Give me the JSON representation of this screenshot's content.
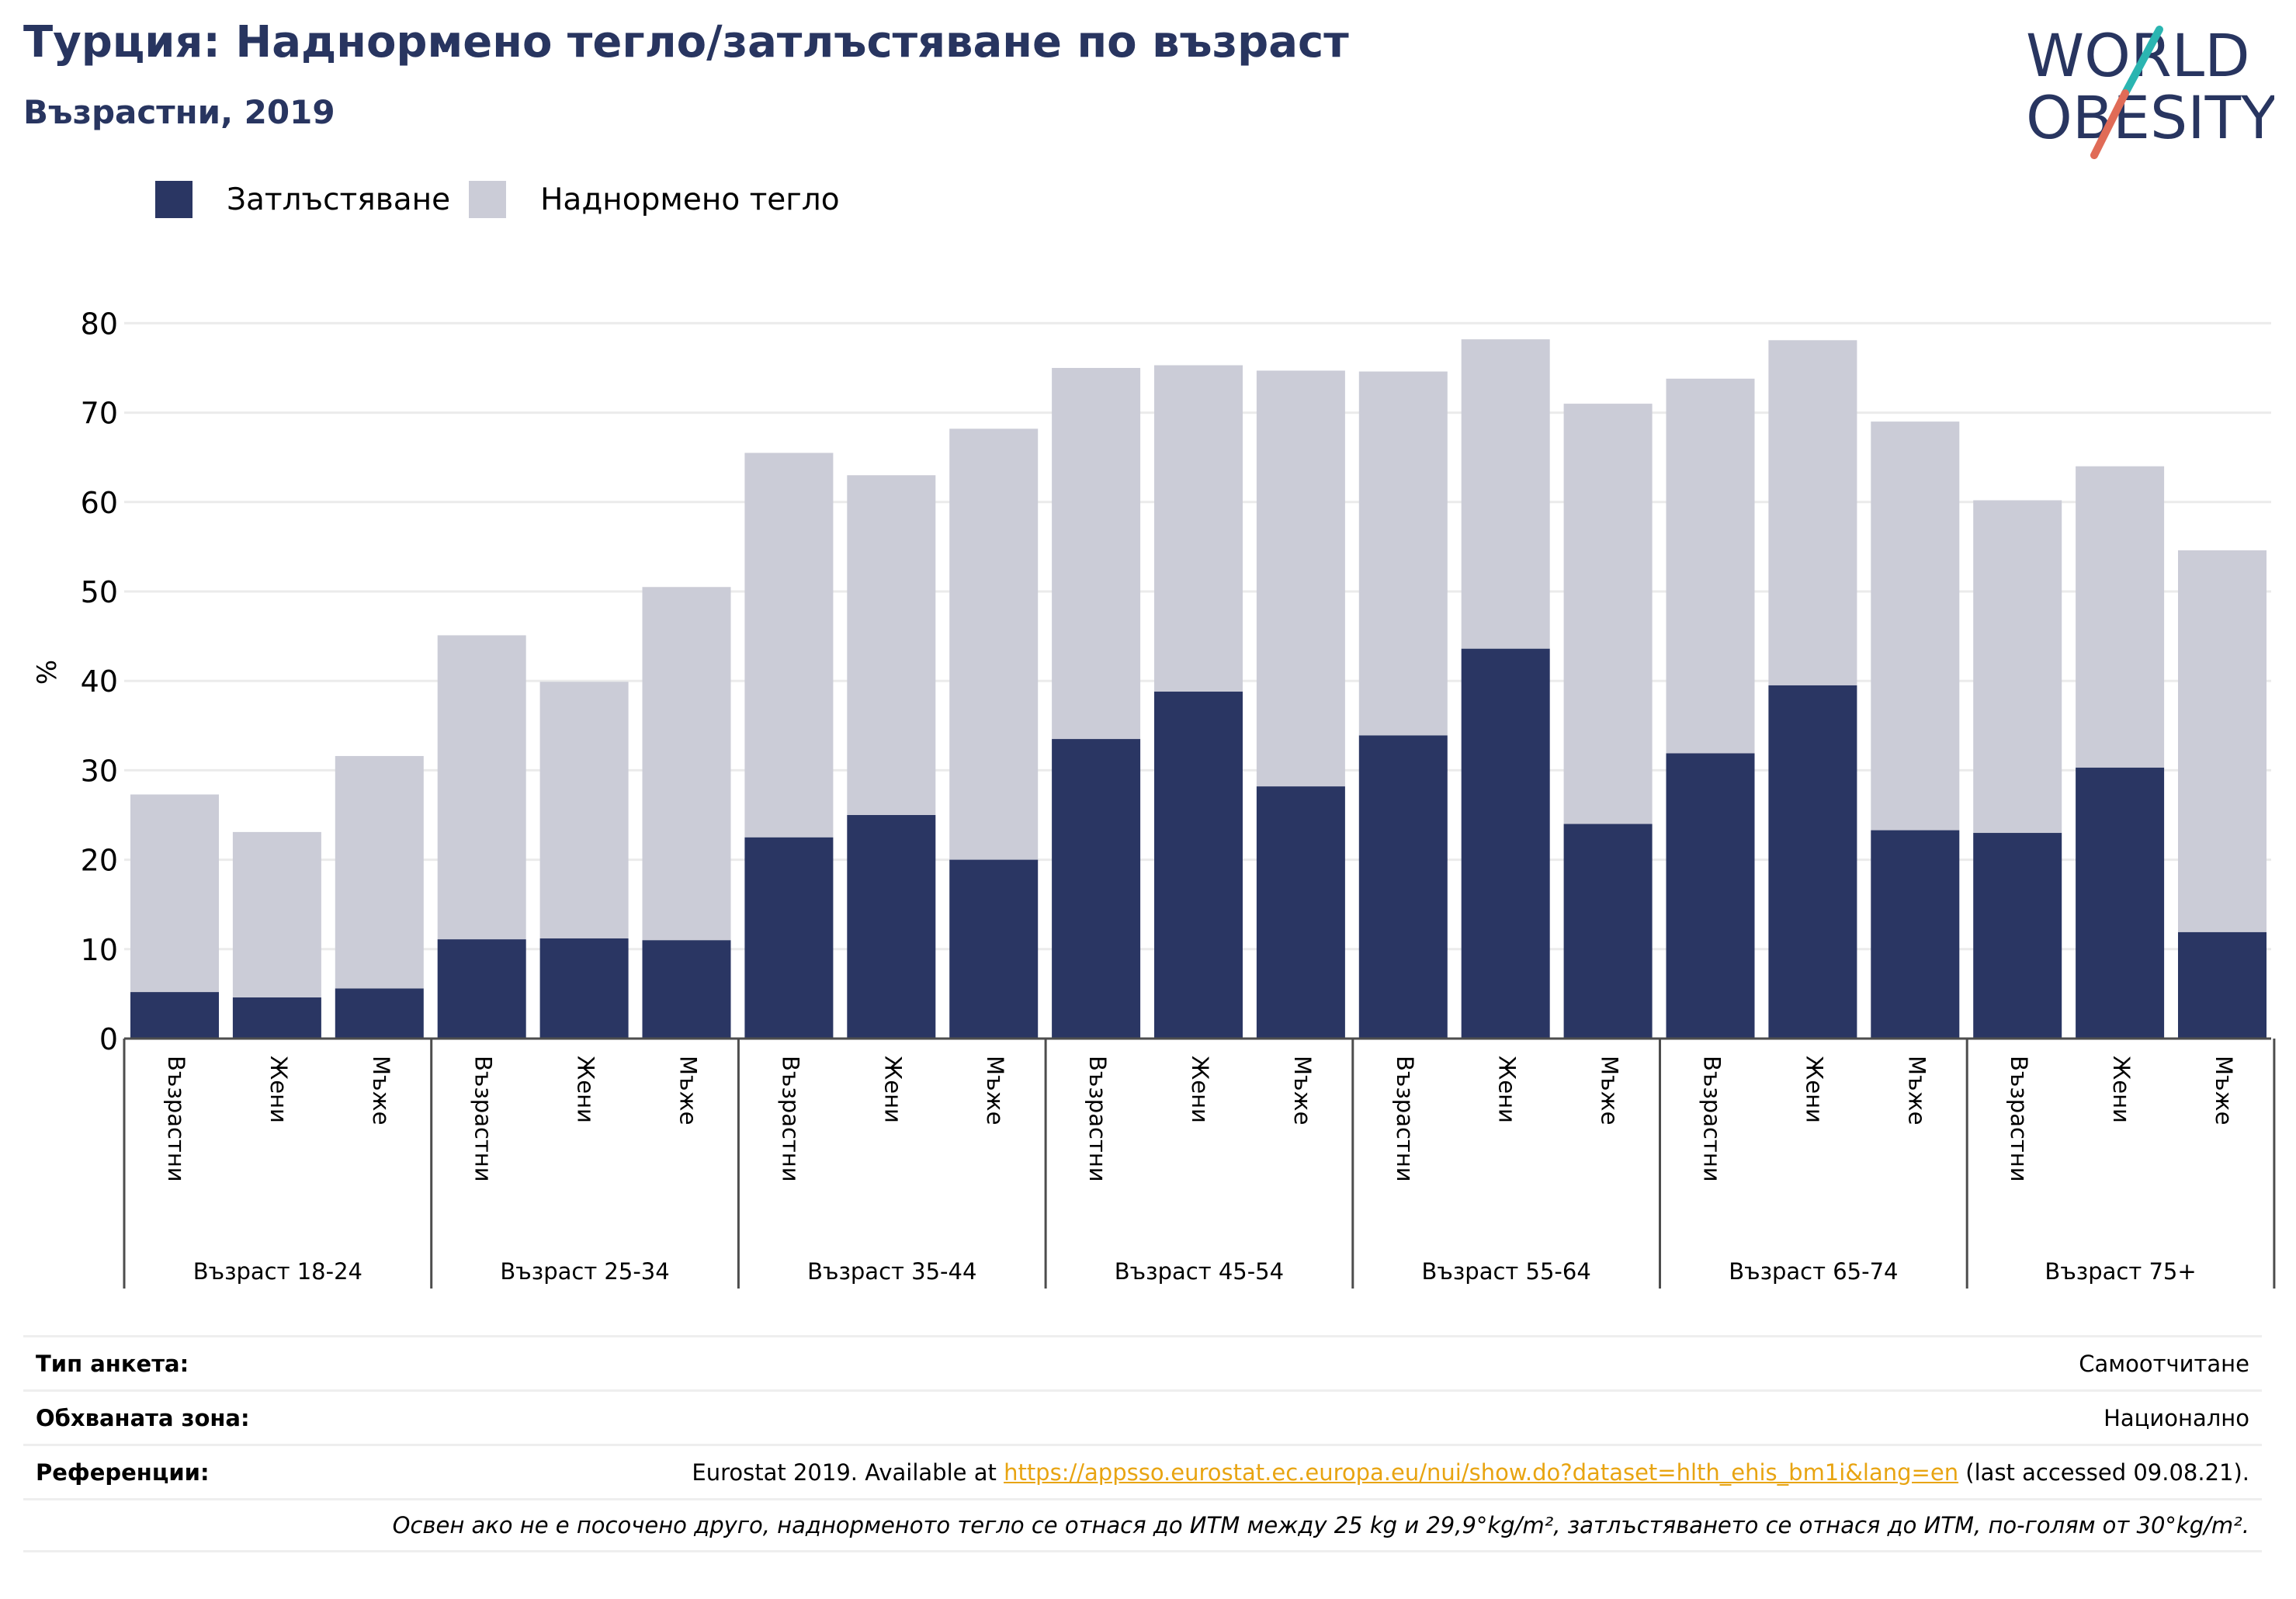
{
  "header": {
    "title": "Турция: Наднормено тегло/затлъстяване по възраст",
    "subtitle": "Възрастни, 2019"
  },
  "logo": {
    "line1": "WORLD",
    "line2": "OBESITY"
  },
  "legend": {
    "obesity": "Затлъстяване",
    "overweight": "Наднормено тегло"
  },
  "colors": {
    "obesity": "#2a3663",
    "overweight": "#cbccd7",
    "accent_teal": "#2bb5b1",
    "accent_red": "#e06b57",
    "link": "#e8a411"
  },
  "chart_data": {
    "type": "bar",
    "stacked": true,
    "ylabel": "%",
    "ylim": [
      0,
      80
    ],
    "yticks": [
      0,
      10,
      20,
      30,
      40,
      50,
      60,
      70,
      80
    ],
    "groups": [
      "Възраст 18-24",
      "Възраст 25-34",
      "Възраст 35-44",
      "Възраст 45-54",
      "Възраст 55-64",
      "Възраст 65-74",
      "Възраст 75+"
    ],
    "subcategories": [
      "Възрастни",
      "Жени",
      "Мъже"
    ],
    "series": [
      {
        "name": "Затлъстяване",
        "values": [
          5.2,
          4.6,
          5.6,
          11.1,
          11.2,
          11.0,
          22.5,
          25.0,
          20.0,
          33.5,
          38.8,
          28.2,
          33.9,
          43.6,
          24.0,
          31.9,
          39.5,
          23.3,
          23.0,
          30.3,
          11.9
        ]
      },
      {
        "name": "Наднормено тегло",
        "values": [
          22.1,
          18.5,
          26.0,
          34.0,
          28.7,
          39.5,
          43.0,
          38.0,
          48.2,
          41.5,
          36.5,
          46.5,
          40.7,
          34.6,
          47.0,
          41.9,
          38.6,
          45.7,
          37.2,
          33.7,
          42.7
        ]
      }
    ]
  },
  "info": {
    "survey_label": "Тип анкета:",
    "survey_value": "Самоотчитане",
    "area_label": "Обхваната зона:",
    "area_value": "Национално",
    "refs_label": "Референции:",
    "refs_prefix": "Eurostat 2019. Available at ",
    "refs_link": "https://appsso.eurostat.ec.europa.eu/nui/show.do?dataset=hlth_ehis_bm1i&lang=en",
    "refs_suffix": " (last accessed 09.08.21).",
    "note": "Освен ако не е посочено друго, наднорменото тегло се отнася до ИТМ между 25 kg и 29,9°kg/m², затлъстяването се отнася до ИТМ, по-голям от 30°kg/m²."
  }
}
